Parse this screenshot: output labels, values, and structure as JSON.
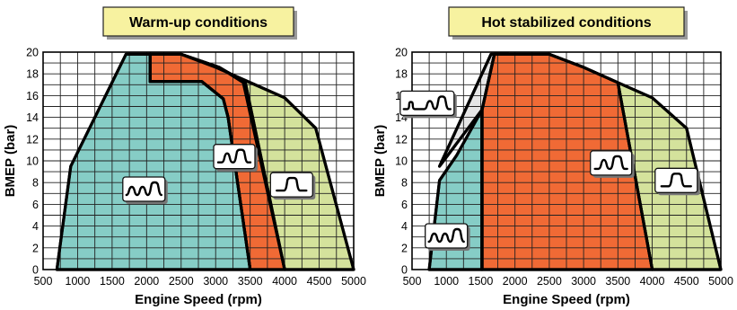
{
  "chart_data": [
    {
      "type": "area",
      "title": "Warm-up conditions",
      "xlabel": "Engine Speed (rpm)",
      "ylabel": "BMEP (bar)",
      "xlim": [
        500,
        5000
      ],
      "ylim": [
        0,
        20
      ],
      "xticks": [
        500,
        1000,
        1500,
        2000,
        2500,
        3000,
        3500,
        4000,
        4500,
        5000
      ],
      "yticks": [
        0,
        2,
        4,
        6,
        8,
        10,
        12,
        14,
        16,
        18,
        20
      ],
      "grid": true,
      "colors": {
        "light_green": "#d4e29c",
        "orange": "#f06a35",
        "teal": "#86cdc6"
      },
      "regions": [
        {
          "color": "#d4e29c",
          "icon": "single-pulse-icon",
          "icon_at": [
            4100,
            7.8
          ],
          "points": [
            [
              2500,
              19.8
            ],
            [
              3000,
              18.6
            ],
            [
              3500,
              17.2
            ],
            [
              4000,
              15.8
            ],
            [
              4450,
              13
            ],
            [
              5000,
              0
            ],
            [
              4000,
              0
            ],
            [
              3400,
              17.2
            ],
            [
              3050,
              18.6
            ]
          ]
        },
        {
          "color": "#f06a35",
          "icon": "double-pulse-icon",
          "icon_at": [
            3270,
            10.4
          ],
          "points": [
            [
              2050,
              19.8
            ],
            [
              2500,
              19.8
            ],
            [
              3050,
              18.6
            ],
            [
              3430,
              17.2
            ],
            [
              4000,
              0
            ],
            [
              3500,
              0
            ],
            [
              3180,
              14
            ],
            [
              3110,
              15.7
            ],
            [
              2800,
              17.3
            ],
            [
              2050,
              17.3
            ]
          ]
        },
        {
          "color": "#86cdc6",
          "icon": "triple-pulse-icon",
          "icon_at": [
            1960,
            7.4
          ],
          "points": [
            [
              700,
              0
            ],
            [
              900,
              9.5
            ],
            [
              1250,
              14
            ],
            [
              1700,
              19.8
            ],
            [
              2050,
              19.8
            ],
            [
              2050,
              17.3
            ],
            [
              2800,
              17.3
            ],
            [
              3110,
              15.7
            ],
            [
              3180,
              14
            ],
            [
              3500,
              0
            ]
          ]
        }
      ]
    },
    {
      "type": "area",
      "title": "Hot stabilized conditions",
      "xlabel": "Engine Speed (rpm)",
      "ylabel": "BMEP (bar)",
      "xlim": [
        500,
        5000
      ],
      "ylim": [
        0,
        20
      ],
      "xticks": [
        500,
        1000,
        1500,
        2000,
        2500,
        3000,
        3500,
        4000,
        4500,
        5000
      ],
      "yticks": [
        0,
        2,
        4,
        6,
        8,
        10,
        12,
        14,
        16,
        18,
        20
      ],
      "grid": true,
      "colors": {
        "light_green": "#d4e29c",
        "orange": "#f06a35",
        "teal": "#86cdc6",
        "grey": "#e6e6e6"
      },
      "regions": [
        {
          "color": "#d4e29c",
          "icon": "single-pulse-icon",
          "icon_at": [
            4350,
            8.2
          ],
          "points": [
            [
              2500,
              19.8
            ],
            [
              3000,
              18.6
            ],
            [
              3500,
              17.2
            ],
            [
              4000,
              15.8
            ],
            [
              4500,
              13
            ],
            [
              5000,
              0
            ],
            [
              4000,
              0
            ],
            [
              3500,
              17.2
            ],
            [
              3000,
              18.6
            ]
          ]
        },
        {
          "color": "#f06a35",
          "icon": "double-pulse-icon",
          "icon_at": [
            3400,
            9.8
          ],
          "points": [
            [
              1520,
              14.7
            ],
            [
              1700,
              19.8
            ],
            [
              2500,
              19.8
            ],
            [
              3000,
              18.6
            ],
            [
              3500,
              17.2
            ],
            [
              4000,
              0
            ],
            [
              1520,
              0
            ]
          ]
        },
        {
          "color": "#e6e6e6",
          "icon": "spaced-pulse-icon",
          "icon_at": [
            720,
            15.3
          ],
          "points": [
            [
              900,
              9.5
            ],
            [
              1520,
              14.7
            ],
            [
              1700,
              19.8
            ],
            [
              1900,
              19.8
            ],
            [
              1650,
              19.8
            ]
          ]
        },
        {
          "color": "#86cdc6",
          "icon": "triple-pulse-icon",
          "icon_at": [
            1000,
            3.1
          ],
          "points": [
            [
              750,
              0
            ],
            [
              900,
              8.2
            ],
            [
              1150,
              10.5
            ],
            [
              1520,
              14.7
            ],
            [
              1520,
              0
            ]
          ]
        }
      ]
    }
  ]
}
